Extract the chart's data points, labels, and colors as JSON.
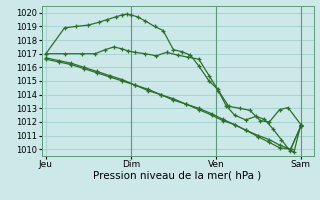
{
  "background_color": "#cce8e8",
  "grid_color": "#99cccc",
  "line_color": "#2d6e2d",
  "title": "Pression niveau de la mer( hPa )",
  "yticks": [
    1010,
    1011,
    1012,
    1013,
    1014,
    1015,
    1016,
    1017,
    1018,
    1019,
    1020
  ],
  "ylim": [
    1009.5,
    1020.5
  ],
  "xtick_labels": [
    "Jeu",
    "Dim",
    "Ven",
    "Sam"
  ],
  "xtick_positions": [
    0,
    1,
    2,
    3
  ],
  "vline_positions": [
    1,
    2,
    3
  ],
  "xlim": [
    -0.05,
    3.15
  ],
  "series3_x": [
    0.0,
    0.22,
    0.35,
    0.5,
    0.62,
    0.72,
    0.82,
    0.9,
    0.95,
    1.0,
    1.08,
    1.17,
    1.28,
    1.38,
    1.5,
    1.6,
    1.7,
    1.8,
    1.92,
    2.02,
    2.12,
    2.22,
    2.35,
    2.47,
    2.57,
    2.67,
    2.77,
    2.87,
    2.92,
    3.0
  ],
  "series3_y": [
    1017.0,
    1018.9,
    1019.0,
    1019.1,
    1019.3,
    1019.5,
    1019.7,
    1019.85,
    1019.9,
    1019.85,
    1019.7,
    1019.4,
    1019.0,
    1018.7,
    1017.3,
    1017.15,
    1016.9,
    1016.1,
    1015.0,
    1014.4,
    1013.2,
    1012.5,
    1012.15,
    1012.4,
    1012.2,
    1011.5,
    1010.7,
    1009.9,
    1009.8,
    1011.8
  ],
  "series4_x": [
    0.0,
    0.22,
    0.42,
    0.58,
    0.7,
    0.8,
    0.9,
    0.97,
    1.05,
    1.17,
    1.3,
    1.42,
    1.55,
    1.67,
    1.8,
    1.92,
    2.03,
    2.15,
    2.28,
    2.4,
    2.52,
    2.63,
    2.75,
    2.85,
    3.0
  ],
  "series4_y": [
    1017.0,
    1017.0,
    1017.0,
    1017.0,
    1017.3,
    1017.5,
    1017.35,
    1017.2,
    1017.1,
    1017.0,
    1016.85,
    1017.1,
    1016.9,
    1016.75,
    1016.6,
    1015.4,
    1014.3,
    1013.15,
    1013.0,
    1012.85,
    1012.1,
    1012.0,
    1012.9,
    1013.05,
    1011.8
  ],
  "series1_x": [
    0.0,
    0.15,
    0.3,
    0.45,
    0.6,
    0.75,
    0.9,
    1.05,
    1.2,
    1.35,
    1.5,
    1.65,
    1.8,
    1.95,
    2.08,
    2.22,
    2.35,
    2.5,
    2.63,
    2.75,
    2.88,
    3.0
  ],
  "series1_y": [
    1016.7,
    1016.5,
    1016.3,
    1016.0,
    1015.7,
    1015.4,
    1015.1,
    1014.7,
    1014.4,
    1014.0,
    1013.7,
    1013.3,
    1013.0,
    1012.6,
    1012.2,
    1011.8,
    1011.4,
    1010.9,
    1010.5,
    1010.1,
    1010.0,
    1011.7
  ],
  "series2_x": [
    0.0,
    0.15,
    0.3,
    0.45,
    0.6,
    0.75,
    0.9,
    1.05,
    1.2,
    1.35,
    1.5,
    1.65,
    1.8,
    1.95,
    2.08,
    2.22,
    2.35,
    2.5,
    2.63,
    2.75,
    2.88,
    3.0
  ],
  "series2_y": [
    1016.6,
    1016.4,
    1016.2,
    1015.9,
    1015.6,
    1015.3,
    1015.0,
    1014.7,
    1014.3,
    1014.0,
    1013.6,
    1013.3,
    1012.9,
    1012.5,
    1012.1,
    1011.8,
    1011.4,
    1011.0,
    1010.7,
    1010.3,
    1010.0,
    1011.7
  ]
}
